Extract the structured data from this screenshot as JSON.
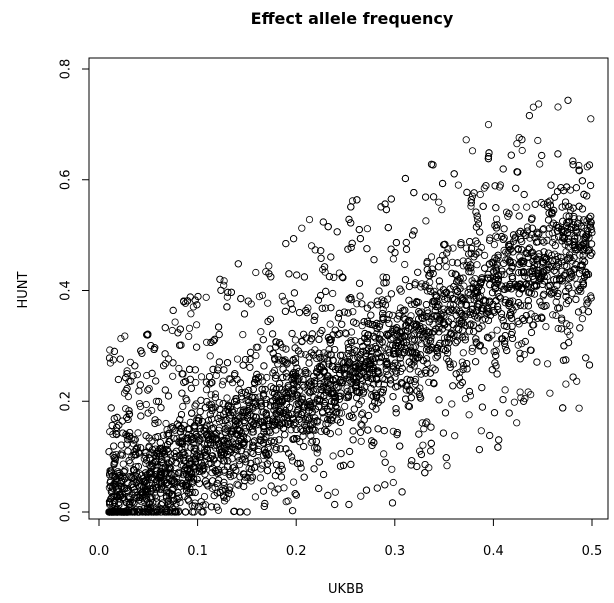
{
  "chart_data": {
    "type": "scatter",
    "title": "Effect allele frequency",
    "xlabel": "UKBB",
    "ylabel": "HUNT",
    "xlim": [
      0.0,
      0.5
    ],
    "ylim": [
      0.0,
      0.8
    ],
    "x_ticks": [
      "0.0",
      "0.1",
      "0.2",
      "0.3",
      "0.4",
      "0.5"
    ],
    "y_ticks": [
      "0.0",
      "0.2",
      "0.4",
      "0.6",
      "0.8"
    ],
    "marker": "open-circle",
    "marker_color": "#000000",
    "grid": false,
    "legend": "none",
    "distribution": {
      "x_range": [
        0.01,
        0.5
      ],
      "y_range": [
        0.0,
        0.79
      ],
      "trend": "y approximately equals x, dense diagonal band",
      "upper_envelope": [
        [
          0.01,
          0.31
        ],
        [
          0.1,
          0.4
        ],
        [
          0.2,
          0.53
        ],
        [
          0.3,
          0.6
        ],
        [
          0.4,
          0.71
        ],
        [
          0.5,
          0.79
        ]
      ],
      "lower_envelope": [
        [
          0.01,
          0.0
        ],
        [
          0.2,
          0.0
        ],
        [
          0.31,
          0.0
        ],
        [
          0.4,
          0.1
        ],
        [
          0.5,
          0.2
        ]
      ]
    }
  }
}
